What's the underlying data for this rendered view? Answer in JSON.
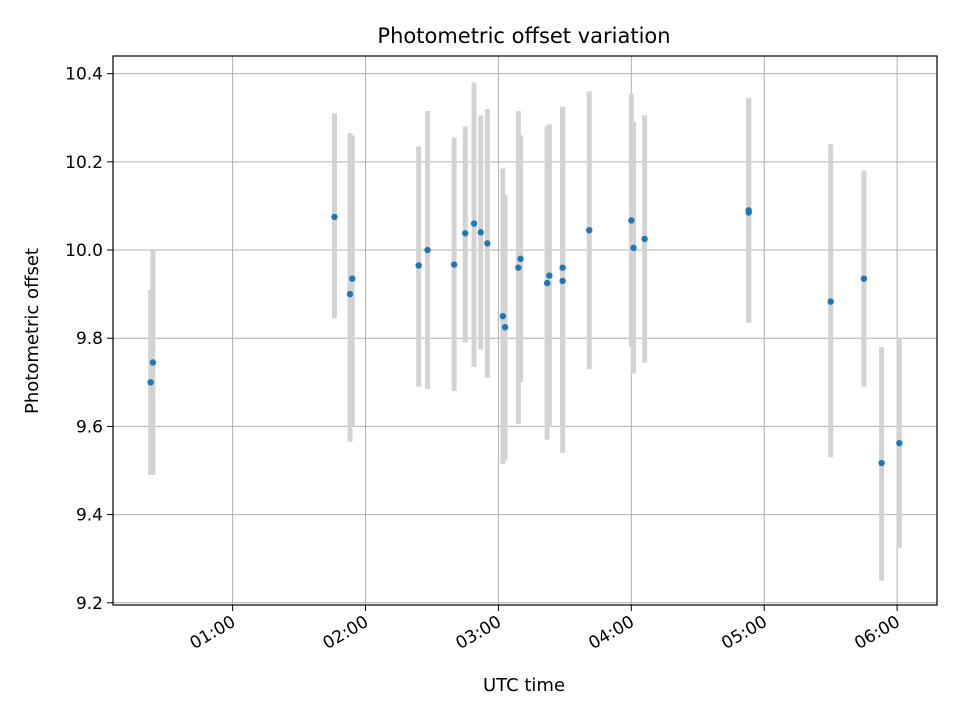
{
  "chart_data": {
    "type": "scatter",
    "title": "Photometric offset variation",
    "xlabel": "UTC time",
    "ylabel": "Photometric offset",
    "x_unit": "UTC",
    "xlim": [
      "00:06",
      "06:18"
    ],
    "ylim": [
      9.195,
      10.44
    ],
    "x_ticks": [
      "01:00",
      "02:00",
      "03:00",
      "04:00",
      "05:00",
      "06:00"
    ],
    "y_ticks": [
      9.2,
      9.4,
      9.6,
      9.8,
      10.0,
      10.2,
      10.4
    ],
    "grid": true,
    "marker_color": "#1f77b4",
    "errorbar_color": "#d3d3d3",
    "points": [
      {
        "time": "00:23",
        "y": 9.7,
        "ylow": 9.49,
        "yhigh": 9.91
      },
      {
        "time": "00:24",
        "y": 9.745,
        "ylow": 9.49,
        "yhigh": 10.0
      },
      {
        "time": "01:46",
        "y": 10.075,
        "ylow": 9.845,
        "yhigh": 10.31
      },
      {
        "time": "01:53",
        "y": 9.9,
        "ylow": 9.565,
        "yhigh": 10.265
      },
      {
        "time": "01:54",
        "y": 9.935,
        "ylow": 9.6,
        "yhigh": 10.26
      },
      {
        "time": "02:24",
        "y": 9.965,
        "ylow": 9.69,
        "yhigh": 10.235
      },
      {
        "time": "02:28",
        "y": 10.0,
        "ylow": 9.685,
        "yhigh": 10.315
      },
      {
        "time": "02:40",
        "y": 9.967,
        "ylow": 9.68,
        "yhigh": 10.255
      },
      {
        "time": "02:45",
        "y": 10.038,
        "ylow": 9.79,
        "yhigh": 10.28
      },
      {
        "time": "02:49",
        "y": 10.06,
        "ylow": 9.735,
        "yhigh": 10.38
      },
      {
        "time": "02:52",
        "y": 10.04,
        "ylow": 9.775,
        "yhigh": 10.305
      },
      {
        "time": "02:55",
        "y": 10.015,
        "ylow": 9.71,
        "yhigh": 10.32
      },
      {
        "time": "03:02",
        "y": 9.85,
        "ylow": 9.515,
        "yhigh": 10.185
      },
      {
        "time": "03:03",
        "y": 9.825,
        "ylow": 9.525,
        "yhigh": 10.125
      },
      {
        "time": "03:09",
        "y": 9.96,
        "ylow": 9.605,
        "yhigh": 10.315
      },
      {
        "time": "03:10",
        "y": 9.98,
        "ylow": 9.7,
        "yhigh": 10.26
      },
      {
        "time": "03:22",
        "y": 9.925,
        "ylow": 9.57,
        "yhigh": 10.28
      },
      {
        "time": "03:23",
        "y": 9.942,
        "ylow": 9.6,
        "yhigh": 10.285
      },
      {
        "time": "03:29",
        "y": 9.93,
        "ylow": 9.54,
        "yhigh": 10.32
      },
      {
        "time": "03:29",
        "y": 9.96,
        "ylow": 9.6,
        "yhigh": 10.325
      },
      {
        "time": "03:41",
        "y": 10.045,
        "ylow": 9.73,
        "yhigh": 10.36
      },
      {
        "time": "04:00",
        "y": 10.067,
        "ylow": 9.78,
        "yhigh": 10.355
      },
      {
        "time": "04:01",
        "y": 10.005,
        "ylow": 9.72,
        "yhigh": 10.29
      },
      {
        "time": "04:06",
        "y": 10.025,
        "ylow": 9.745,
        "yhigh": 10.305
      },
      {
        "time": "04:53",
        "y": 10.09,
        "ylow": 9.835,
        "yhigh": 10.345
      },
      {
        "time": "04:53",
        "y": 10.085,
        "ylow": 9.835,
        "yhigh": 10.34
      },
      {
        "time": "05:30",
        "y": 9.883,
        "ylow": 9.53,
        "yhigh": 10.24
      },
      {
        "time": "05:45",
        "y": 9.935,
        "ylow": 9.69,
        "yhigh": 10.18
      },
      {
        "time": "05:53",
        "y": 9.517,
        "ylow": 9.25,
        "yhigh": 9.78
      },
      {
        "time": "06:01",
        "y": 9.562,
        "ylow": 9.325,
        "yhigh": 9.8
      }
    ]
  }
}
